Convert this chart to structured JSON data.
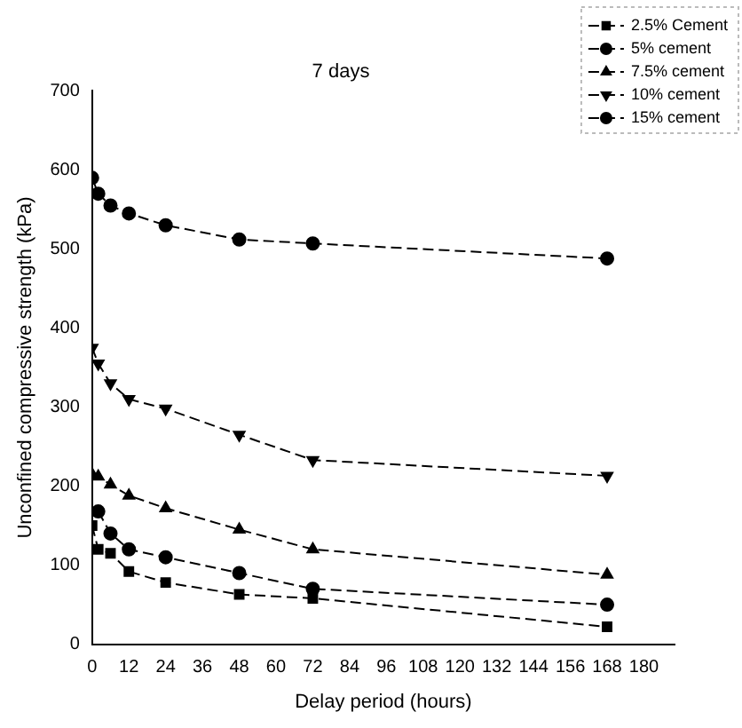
{
  "chart_data": {
    "type": "line",
    "title": "7 days",
    "xlabel": "Delay period (hours)",
    "ylabel": "Unconfined compressive strength (kPa)",
    "x": [
      0,
      2,
      6,
      12,
      24,
      48,
      72,
      168
    ],
    "series": [
      {
        "name": "2.5% Cement",
        "color": "#000000",
        "marker": "square",
        "values": [
          150,
          120,
          115,
          92,
          78,
          63,
          58,
          22
        ]
      },
      {
        "name": "5% cement",
        "color": "#000000",
        "marker": "circle",
        "values": [
          null,
          168,
          140,
          120,
          110,
          90,
          70,
          50
        ]
      },
      {
        "name": "7.5% cement",
        "color": "#000000",
        "marker": "triangle",
        "values": [
          215,
          212,
          202,
          188,
          172,
          145,
          120,
          88
        ]
      },
      {
        "name": "10% cement",
        "color": "#000000",
        "marker": "triangle-down",
        "values": [
          375,
          355,
          330,
          310,
          298,
          265,
          233,
          213
        ]
      },
      {
        "name": "15% cement",
        "color": "#000000",
        "marker": "circle",
        "values": [
          590,
          570,
          555,
          545,
          530,
          512,
          507,
          488
        ]
      }
    ],
    "xlim": [
      0,
      190
    ],
    "xticks": [
      0,
      12,
      24,
      36,
      48,
      60,
      72,
      84,
      96,
      108,
      120,
      132,
      144,
      156,
      168,
      180
    ],
    "ylim": [
      0,
      700
    ],
    "yticks": [
      0,
      100,
      200,
      300,
      400,
      500,
      600,
      700
    ],
    "grid": false,
    "legend": "top right",
    "line_style": "dashed"
  }
}
